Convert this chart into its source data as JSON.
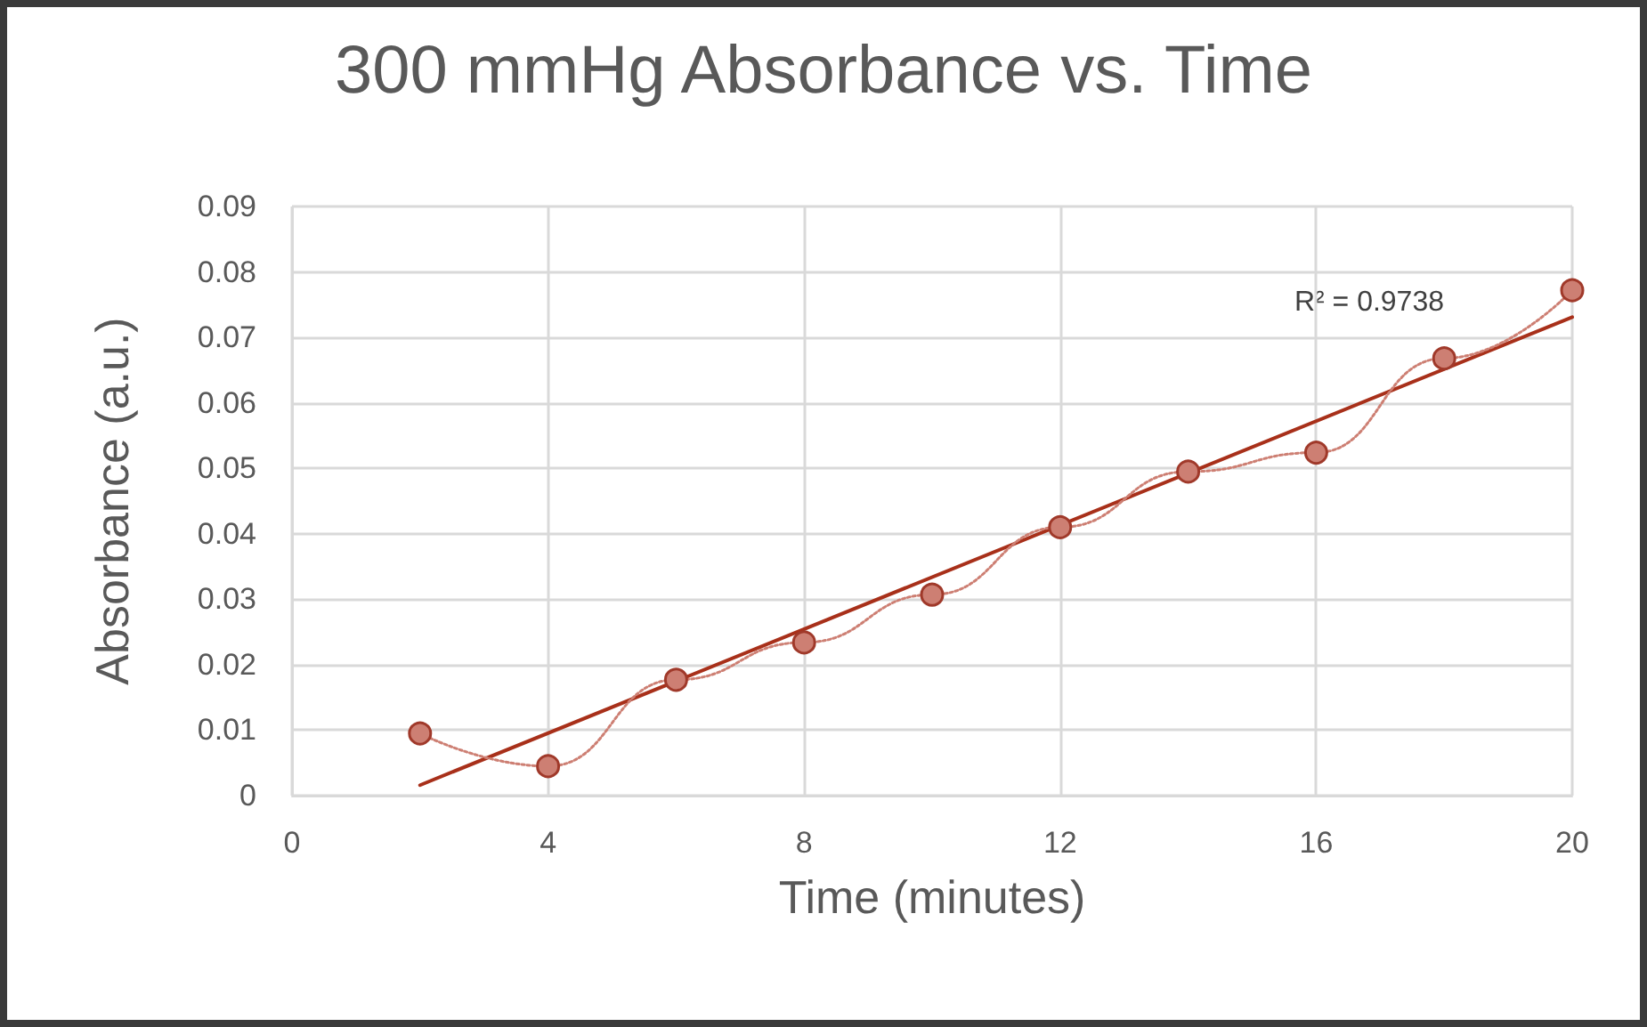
{
  "chart_data": {
    "type": "line",
    "title": "300 mmHg Absorbance vs. Time",
    "xlabel": "Time (minutes)",
    "ylabel": "Absorbance (a.u.)",
    "x": [
      2,
      4,
      6,
      8,
      10,
      12,
      14,
      16,
      18,
      20
    ],
    "series": [
      {
        "color": "#cd7f73",
        "line_style": "dotted",
        "marker": "circle",
        "values": [
          0.0095,
          0.0045,
          0.0177,
          0.0234,
          0.0307,
          0.041,
          0.0495,
          0.0524,
          0.0668,
          0.0772
        ]
      },
      {
        "color": "#a8301a",
        "line_style": "solid",
        "marker": "none",
        "x": [
          2,
          20
        ],
        "values": [
          0.0016,
          0.0731
        ]
      }
    ],
    "xlim": [
      0,
      20
    ],
    "xticks": [
      0,
      4,
      8,
      12,
      16,
      20
    ],
    "ylim": [
      0,
      0.09
    ],
    "yticks": [
      0,
      0.01,
      0.02,
      0.03,
      0.04,
      0.05,
      0.06,
      0.07,
      0.08,
      0.09
    ],
    "annotations": [
      "R² = 0.9738"
    ],
    "grid": true
  }
}
